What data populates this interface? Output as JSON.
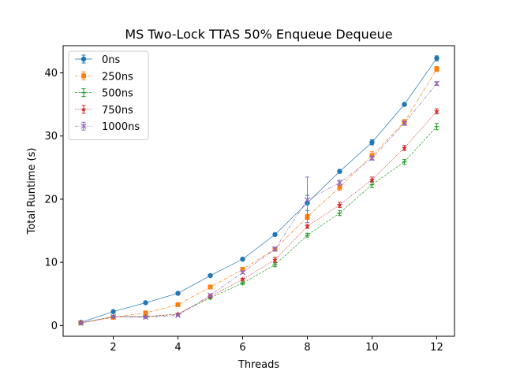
{
  "chart_data": {
    "type": "line",
    "title": "MS Two-Lock TTAS 50% Enqueue Dequeue",
    "xlabel": "Threads",
    "ylabel": "Total Runtime (s)",
    "xlim": [
      0.45,
      12.55
    ],
    "ylim": [
      -1.7,
      44.3
    ],
    "xticks": [
      2,
      4,
      6,
      8,
      10,
      12
    ],
    "yticks": [
      0,
      10,
      20,
      30,
      40
    ],
    "grid": false,
    "legend_position": "top-left",
    "x": [
      1,
      2,
      3,
      4,
      5,
      6,
      7,
      8,
      9,
      10,
      11,
      12
    ],
    "series": [
      {
        "name": "0ns",
        "color": "#1f77b4",
        "marker": "circle",
        "dash": "solid",
        "values": [
          0.5,
          2.2,
          3.6,
          5.1,
          7.9,
          10.5,
          14.4,
          19.4,
          24.4,
          29.0,
          35.0,
          42.3
        ],
        "errors": [
          0.1,
          0.1,
          0.1,
          0.1,
          0.2,
          0.2,
          0.2,
          1.2,
          0.3,
          0.4,
          0.2,
          0.4
        ]
      },
      {
        "name": "250ns",
        "color": "#ff7f0e",
        "marker": "square",
        "dash": "dashdot",
        "values": [
          0.4,
          1.3,
          2.0,
          3.3,
          6.1,
          8.9,
          12.1,
          17.2,
          21.9,
          26.9,
          32.2,
          40.6
        ],
        "errors": [
          0.1,
          0.1,
          0.1,
          0.1,
          0.2,
          0.3,
          0.3,
          0.4,
          0.5,
          0.6,
          0.4,
          0.4
        ]
      },
      {
        "name": "500ns",
        "color": "#2ca02c",
        "marker": "plus",
        "dash": "dashed",
        "values": [
          0.4,
          1.4,
          1.4,
          1.8,
          4.4,
          6.7,
          9.6,
          14.3,
          17.8,
          22.3,
          25.9,
          31.5
        ],
        "errors": [
          0.1,
          0.1,
          0.1,
          0.1,
          0.2,
          0.2,
          0.3,
          0.3,
          0.4,
          0.5,
          0.4,
          0.5
        ]
      },
      {
        "name": "750ns",
        "color": "#d62728",
        "marker": "star",
        "dash": "dotted",
        "values": [
          0.4,
          1.4,
          1.4,
          1.8,
          4.6,
          7.3,
          10.4,
          15.7,
          19.1,
          23.1,
          28.1,
          33.9
        ],
        "errors": [
          0.1,
          0.1,
          0.1,
          0.1,
          0.2,
          0.2,
          0.4,
          0.3,
          0.4,
          0.4,
          0.4,
          0.4
        ]
      },
      {
        "name": "1000ns",
        "color": "#9467bd",
        "marker": "x",
        "dash": "dashdotdot",
        "values": [
          0.4,
          1.4,
          1.3,
          1.6,
          4.8,
          8.4,
          12.1,
          19.9,
          22.6,
          26.5,
          32.0,
          38.3
        ],
        "errors": [
          0.1,
          0.1,
          0.1,
          0.1,
          0.2,
          0.2,
          0.3,
          3.6,
          0.4,
          0.3,
          0.3,
          0.3
        ]
      }
    ]
  }
}
